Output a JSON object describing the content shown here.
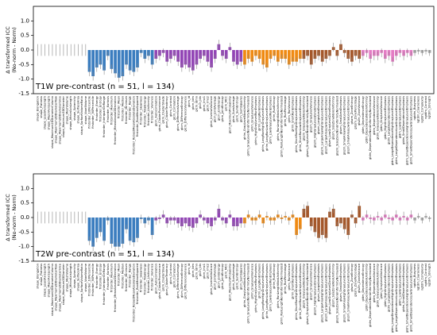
{
  "chart_data": [
    {
      "type": "bar",
      "title": "T1W pre-contrast (n = 51, l = 134)",
      "ylabel": [
        "Δ transformed ICC",
        "(No-norm - Norm)"
      ],
      "ylim": [
        -1.5,
        1.5
      ],
      "yticks": [
        {
          "value": 1,
          "label": "1.0"
        },
        0.5,
        {
          "value": 0,
          "label": "0.0"
        },
        -0.5,
        {
          "value": -1,
          "label": "-1.0"
        },
        -1.5
      ],
      "categories": [
        "shape_Elongation",
        "shape_Flatness",
        "shape_LeastAxisLength",
        "shape_MajorAxisLength",
        "shape_Maximum2DDiameterColumn",
        "shape_Maximum2DDiameterRow",
        "shape_Maximum2DDiameterSlice",
        "shape_Maximum3DDiameter",
        "shape_MeshVolume",
        "shape_MinorAxisLength",
        "shape_Sphericity",
        "shape_SurfaceArea",
        "shape_SurfaceVolumeRatio",
        "shape_VoxelVolume",
        "firstorder_10Percentile",
        "firstorder_90Percentile",
        "firstorder_Energy",
        "firstorder_Entropy",
        "firstorder_InterquartileRange",
        "firstorder_Kurtosis",
        "firstorder_Maximum",
        "firstorder_MeanAbsoluteDeviation",
        "firstorder_Mean",
        "firstorder_Median",
        "firstorder_Minimum",
        "firstorder_Range",
        "firstorder_RobustMeanAbsoluteDeviation",
        "firstorder_RootMeanSquared",
        "firstorder_Skewness",
        "firstorder_TotalEnergy",
        "firstorder_Uniformity",
        "firstorder_Variance",
        "glcm_Autocorrelation",
        "glcm_ClusterProminence",
        "glcm_ClusterShade",
        "glcm_ClusterTendency",
        "glcm_Contrast",
        "glcm_Correlation",
        "glcm_DifferenceAverage",
        "glcm_DifferenceEntropy",
        "glcm_DifferenceVariance",
        "glcm_Id",
        "glcm_Idm",
        "glcm_Idmn",
        "glcm_Idn",
        "glcm_Imc1",
        "glcm_Imc2",
        "glcm_InverseVariance",
        "glcm_JointAverage",
        "glcm_JointEnergy",
        "glcm_JointEntropy",
        "glcm_MCC",
        "glcm_MaximumProbability",
        "glcm_SumAverage",
        "glcm_SumEntropy",
        "glcm_SumSquares",
        "glrlm_GrayLevelNonUniformity",
        "glrlm_GrayLevelNonUniformityNormalized",
        "glrlm_GrayLevelVariance",
        "glrlm_HighGrayLevelRunEmphasis",
        "glrlm_LongRunEmphasis",
        "glrlm_LongRunHighGrayLevelEmphasis",
        "glrlm_LongRunLowGrayLevelEmphasis",
        "glrlm_LowGrayLevelRunEmphasis",
        "glrlm_RunEntropy",
        "glrlm_RunLengthNonUniformity",
        "glrlm_RunLengthNonUniformityNormalized",
        "glrlm_RunPercentage",
        "glrlm_RunVariance",
        "glrlm_ShortRunEmphasis",
        "glrlm_ShortRunHighGrayLevelEmphasis",
        "glrlm_ShortRunLowGrayLevelEmphasis",
        "glszm_GrayLevelNonUniformity",
        "glszm_GrayLevelNonUniformityNormalized",
        "glszm_GrayLevelVariance",
        "glszm_HighGrayLevelZoneEmphasis",
        "glszm_LargeAreaEmphasis",
        "glszm_LargeAreaHighGrayLevelEmphasis",
        "glszm_LargeAreaLowGrayLevelEmphasis",
        "glszm_LowGrayLevelZoneEmphasis",
        "glszm_SizeZoneNonUniformity",
        "glszm_SizeZoneNonUniformityNormalized",
        "glszm_SmallAreaEmphasis",
        "glszm_SmallAreaHighGrayLevelEmphasis",
        "glszm_SmallAreaLowGrayLevelEmphasis",
        "glszm_ZoneEntropy",
        "glszm_ZonePercentage",
        "glszm_ZoneVariance",
        "gldm_DependenceEntropy",
        "gldm_DependenceNonUniformity",
        "gldm_DependenceNonUniformityNormalized",
        "gldm_DependenceVariance",
        "gldm_GrayLevelNonUniformity",
        "gldm_GrayLevelVariance",
        "gldm_HighGrayLevelEmphasis",
        "gldm_LargeDependenceEmphasis",
        "gldm_LargeDependenceHighGrayLevelEmphasis",
        "gldm_LargeDependenceLowGrayLevelEmphasis",
        "gldm_LowGrayLevelEmphasis",
        "gldm_SmallDependenceEmphasis",
        "gldm_SmallDependenceHighGrayLevelEmphasis",
        "gldm_SmallDependenceLowGrayLevelEmphasis",
        "ngtdm_Busyness",
        "ngtdm_Coarseness",
        "ngtdm_Complexity",
        "ngtdm_Contrast",
        "ngtdm_Strength"
      ],
      "values": [
        0,
        0,
        0,
        0,
        0,
        0,
        0,
        0,
        0,
        0,
        0,
        0,
        0,
        0,
        -0.75,
        -0.9,
        -0.6,
        -0.5,
        -0.7,
        -0.2,
        -0.65,
        -0.8,
        -0.95,
        -0.9,
        -0.5,
        -0.7,
        -0.75,
        -0.6,
        -0.1,
        -0.3,
        -0.2,
        -0.5,
        -0.3,
        -0.2,
        -0.1,
        -0.4,
        -0.3,
        -0.2,
        -0.4,
        -0.6,
        -0.5,
        -0.6,
        -0.7,
        -0.5,
        -0.3,
        -0.2,
        -0.4,
        -0.6,
        -0.3,
        0.2,
        -0.2,
        -0.3,
        0.1,
        -0.4,
        -0.5,
        -0.4,
        -0.5,
        -0.3,
        -0.4,
        -0.2,
        -0.3,
        -0.5,
        -0.6,
        -0.3,
        -0.2,
        -0.4,
        -0.3,
        -0.3,
        -0.5,
        -0.4,
        -0.4,
        -0.3,
        -0.3,
        -0.2,
        -0.5,
        -0.3,
        -0.2,
        -0.4,
        -0.3,
        -0.2,
        0.1,
        -0.2,
        0.2,
        -0.1,
        -0.3,
        -0.4,
        -0.2,
        -0.3,
        -0.2,
        -0.1,
        -0.3,
        -0.2,
        -0.2,
        -0.1,
        -0.3,
        -0.2,
        -0.4,
        -0.2,
        -0.1,
        -0.2,
        -0.1,
        -0.2,
        -0.1,
        -0.05,
        -0.1,
        -0.05,
        -0.1
      ],
      "errors": [
        0.2,
        0.2,
        0.2,
        0.2,
        0.2,
        0.2,
        0.2,
        0.2,
        0.2,
        0.2,
        0.2,
        0.2,
        0.2,
        0.2,
        0.15,
        0.15,
        0.15,
        0.15,
        0.15,
        0.15,
        0.15,
        0.15,
        0.15,
        0.15,
        0.15,
        0.15,
        0.15,
        0.15,
        0.15,
        0.15,
        0.15,
        0.15,
        0.15,
        0.15,
        0.15,
        0.15,
        0.15,
        0.15,
        0.15,
        0.15,
        0.15,
        0.15,
        0.15,
        0.15,
        0.15,
        0.15,
        0.15,
        0.15,
        0.15,
        0.15,
        0.15,
        0.15,
        0.15,
        0.15,
        0.15,
        0.15,
        0.15,
        0.15,
        0.15,
        0.15,
        0.15,
        0.15,
        0.15,
        0.15,
        0.15,
        0.15,
        0.15,
        0.15,
        0.15,
        0.15,
        0.15,
        0.15,
        0.15,
        0.15,
        0.15,
        0.15,
        0.15,
        0.15,
        0.15,
        0.15,
        0.15,
        0.15,
        0.15,
        0.15,
        0.15,
        0.15,
        0.15,
        0.15,
        0.15,
        0.15,
        0.15,
        0.15,
        0.15,
        0.15,
        0.15,
        0.15,
        0.15,
        0.15,
        0.15,
        0.15,
        0.15,
        0.15,
        0.1,
        0.1,
        0.1,
        0.1,
        0.1
      ],
      "colors": [
        "#999",
        "#999",
        "#999",
        "#999",
        "#999",
        "#999",
        "#999",
        "#999",
        "#999",
        "#999",
        "#999",
        "#999",
        "#999",
        "#999",
        "#3b7dbf",
        "#3b7dbf",
        "#3b7dbf",
        "#3b7dbf",
        "#3b7dbf",
        "#3b7dbf",
        "#3b7dbf",
        "#3b7dbf",
        "#3b7dbf",
        "#3b7dbf",
        "#3b7dbf",
        "#3b7dbf",
        "#3b7dbf",
        "#3b7dbf",
        "#3b7dbf",
        "#3b7dbf",
        "#3b7dbf",
        "#3b7dbf",
        "#9245b5",
        "#9245b5",
        "#9245b5",
        "#9245b5",
        "#9245b5",
        "#9245b5",
        "#9245b5",
        "#9245b5",
        "#9245b5",
        "#9245b5",
        "#9245b5",
        "#9245b5",
        "#9245b5",
        "#9245b5",
        "#9245b5",
        "#9245b5",
        "#9245b5",
        "#9245b5",
        "#9245b5",
        "#9245b5",
        "#9245b5",
        "#9245b5",
        "#9245b5",
        "#9245b5",
        "#f08a12",
        "#f08a12",
        "#f08a12",
        "#f08a12",
        "#f08a12",
        "#f08a12",
        "#f08a12",
        "#f08a12",
        "#f08a12",
        "#f08a12",
        "#f08a12",
        "#f08a12",
        "#f08a12",
        "#f08a12",
        "#f08a12",
        "#f08a12",
        "#a4572a",
        "#a4572a",
        "#a4572a",
        "#a4572a",
        "#a4572a",
        "#a4572a",
        "#a4572a",
        "#a4572a",
        "#a4572a",
        "#a4572a",
        "#a4572a",
        "#a4572a",
        "#a4572a",
        "#a4572a",
        "#a4572a",
        "#a4572a",
        "#e57cc5",
        "#e57cc5",
        "#e57cc5",
        "#e57cc5",
        "#e57cc5",
        "#e57cc5",
        "#e57cc5",
        "#e57cc5",
        "#e57cc5",
        "#e57cc5",
        "#e57cc5",
        "#e57cc5",
        "#e57cc5",
        "#e57cc5",
        "#aaa",
        "#aaa",
        "#aaa",
        "#aaa",
        "#aaa"
      ]
    },
    {
      "type": "bar",
      "title": "T2W pre-contrast (n = 51, l = 134)",
      "ylabel": [
        "Δ transformed ICC",
        "(No-norm - Norm)"
      ],
      "ylim": [
        -1.5,
        1.5
      ],
      "yticks": [
        {
          "value": 1,
          "label": "1.0"
        },
        0.5,
        {
          "value": 0,
          "label": "0.0"
        },
        -0.5,
        {
          "value": -1,
          "label": "-1.0"
        },
        -1.5
      ],
      "categories": [
        "shape_Elongation",
        "shape_Flatness",
        "shape_LeastAxisLength",
        "shape_MajorAxisLength",
        "shape_Maximum2DDiameterColumn",
        "shape_Maximum2DDiameterRow",
        "shape_Maximum2DDiameterSlice",
        "shape_Maximum3DDiameter",
        "shape_MeshVolume",
        "shape_MinorAxisLength",
        "shape_Sphericity",
        "shape_SurfaceArea",
        "shape_SurfaceVolumeRatio",
        "shape_VoxelVolume",
        "firstorder_10Percentile",
        "firstorder_90Percentile",
        "firstorder_Energy",
        "firstorder_Entropy",
        "firstorder_InterquartileRange",
        "firstorder_Kurtosis",
        "firstorder_Maximum",
        "firstorder_MeanAbsoluteDeviation",
        "firstorder_Mean",
        "firstorder_Median",
        "firstorder_Minimum",
        "firstorder_Range",
        "firstorder_RobustMeanAbsoluteDeviation",
        "firstorder_RootMeanSquared",
        "firstorder_Skewness",
        "firstorder_TotalEnergy",
        "firstorder_Uniformity",
        "firstorder_Variance",
        "glcm_Autocorrelation",
        "glcm_ClusterProminence",
        "glcm_ClusterShade",
        "glcm_ClusterTendency",
        "glcm_Contrast",
        "glcm_Correlation",
        "glcm_DifferenceAverage",
        "glcm_DifferenceEntropy",
        "glcm_DifferenceVariance",
        "glcm_Id",
        "glcm_Idm",
        "glcm_Idmn",
        "glcm_Idn",
        "glcm_Imc1",
        "glcm_Imc2",
        "glcm_InverseVariance",
        "glcm_JointAverage",
        "glcm_JointEnergy",
        "glcm_JointEntropy",
        "glcm_MCC",
        "glcm_MaximumProbability",
        "glcm_SumAverage",
        "glcm_SumEntropy",
        "glcm_SumSquares",
        "glrlm_GrayLevelNonUniformity",
        "glrlm_GrayLevelNonUniformityNormalized",
        "glrlm_GrayLevelVariance",
        "glrlm_HighGrayLevelRunEmphasis",
        "glrlm_LongRunEmphasis",
        "glrlm_LongRunHighGrayLevelEmphasis",
        "glrlm_LongRunLowGrayLevelEmphasis",
        "glrlm_LowGrayLevelRunEmphasis",
        "glrlm_RunEntropy",
        "glrlm_RunLengthNonUniformity",
        "glrlm_RunLengthNonUniformityNormalized",
        "glrlm_RunPercentage",
        "glrlm_RunVariance",
        "glrlm_ShortRunEmphasis",
        "glrlm_ShortRunHighGrayLevelEmphasis",
        "glrlm_ShortRunLowGrayLevelEmphasis",
        "glszm_GrayLevelNonUniformity",
        "glszm_GrayLevelNonUniformityNormalized",
        "glszm_GrayLevelVariance",
        "glszm_HighGrayLevelZoneEmphasis",
        "glszm_LargeAreaEmphasis",
        "glszm_LargeAreaHighGrayLevelEmphasis",
        "glszm_LargeAreaLowGrayLevelEmphasis",
        "glszm_LowGrayLevelZoneEmphasis",
        "glszm_SizeZoneNonUniformity",
        "glszm_SizeZoneNonUniformityNormalized",
        "glszm_SmallAreaEmphasis",
        "glszm_SmallAreaHighGrayLevelEmphasis",
        "glszm_SmallAreaLowGrayLevelEmphasis",
        "glszm_ZoneEntropy",
        "glszm_ZonePercentage",
        "glszm_ZoneVariance",
        "gldm_DependenceEntropy",
        "gldm_DependenceNonUniformity",
        "gldm_DependenceNonUniformityNormalized",
        "gldm_DependenceVariance",
        "gldm_GrayLevelNonUniformity",
        "gldm_GrayLevelVariance",
        "gldm_HighGrayLevelEmphasis",
        "gldm_LargeDependenceEmphasis",
        "gldm_LargeDependenceHighGrayLevelEmphasis",
        "gldm_LargeDependenceLowGrayLevelEmphasis",
        "gldm_LowGrayLevelEmphasis",
        "gldm_SmallDependenceEmphasis",
        "gldm_SmallDependenceHighGrayLevelEmphasis",
        "gldm_SmallDependenceLowGrayLevelEmphasis",
        "ngtdm_Busyness",
        "ngtdm_Coarseness",
        "ngtdm_Complexity",
        "ngtdm_Contrast",
        "ngtdm_Strength"
      ],
      "values": [
        0,
        0,
        0,
        0,
        0,
        0,
        0,
        0,
        0,
        0,
        0,
        0,
        0,
        0,
        -0.8,
        -1.0,
        -0.7,
        -0.5,
        -0.8,
        -0.1,
        -0.9,
        -1.0,
        -1.0,
        -0.9,
        -0.4,
        -0.8,
        -0.85,
        -0.7,
        -0.05,
        -0.2,
        -0.1,
        -0.6,
        -0.1,
        -0.05,
        0.1,
        -0.2,
        -0.1,
        -0.1,
        -0.2,
        -0.3,
        -0.2,
        -0.3,
        -0.35,
        -0.2,
        0.1,
        -0.1,
        -0.2,
        -0.3,
        -0.1,
        0.3,
        -0.1,
        -0.2,
        0.1,
        -0.3,
        -0.3,
        -0.2,
        -0.2,
        0.1,
        -0.1,
        -0.1,
        0.1,
        -0.2,
        0.05,
        -0.1,
        -0.1,
        0.1,
        -0.05,
        0.05,
        -0.1,
        0.1,
        -0.6,
        -0.4,
        0.3,
        0.4,
        -0.3,
        -0.5,
        -0.7,
        -0.6,
        -0.7,
        0.2,
        0.3,
        -0.3,
        -0.2,
        -0.4,
        -0.6,
        0.1,
        -0.2,
        0.4,
        -0.1,
        0.1,
        -0.05,
        -0.1,
        0.05,
        -0.1,
        0.1,
        -0.05,
        -0.1,
        0.1,
        -0.1,
        0.05,
        -0.1,
        0.1,
        -0.1,
        0.05,
        -0.1,
        0.05,
        -0.05
      ],
      "errors": [
        0.2,
        0.2,
        0.2,
        0.2,
        0.2,
        0.2,
        0.2,
        0.2,
        0.2,
        0.2,
        0.2,
        0.2,
        0.2,
        0.2,
        0.15,
        0.15,
        0.15,
        0.15,
        0.15,
        0.15,
        0.15,
        0.15,
        0.15,
        0.15,
        0.15,
        0.15,
        0.15,
        0.15,
        0.15,
        0.15,
        0.15,
        0.15,
        0.15,
        0.15,
        0.15,
        0.15,
        0.15,
        0.15,
        0.15,
        0.15,
        0.15,
        0.15,
        0.15,
        0.15,
        0.15,
        0.15,
        0.15,
        0.15,
        0.15,
        0.15,
        0.15,
        0.15,
        0.15,
        0.15,
        0.15,
        0.15,
        0.15,
        0.15,
        0.15,
        0.15,
        0.15,
        0.15,
        0.15,
        0.15,
        0.15,
        0.15,
        0.15,
        0.15,
        0.15,
        0.15,
        0.15,
        0.15,
        0.15,
        0.15,
        0.15,
        0.15,
        0.15,
        0.15,
        0.15,
        0.15,
        0.15,
        0.15,
        0.15,
        0.15,
        0.15,
        0.15,
        0.15,
        0.15,
        0.15,
        0.15,
        0.15,
        0.15,
        0.15,
        0.15,
        0.15,
        0.15,
        0.15,
        0.15,
        0.15,
        0.15,
        0.15,
        0.15,
        0.1,
        0.1,
        0.1,
        0.1,
        0.1
      ],
      "colors": [
        "#999",
        "#999",
        "#999",
        "#999",
        "#999",
        "#999",
        "#999",
        "#999",
        "#999",
        "#999",
        "#999",
        "#999",
        "#999",
        "#999",
        "#3b7dbf",
        "#3b7dbf",
        "#3b7dbf",
        "#3b7dbf",
        "#3b7dbf",
        "#3b7dbf",
        "#3b7dbf",
        "#3b7dbf",
        "#3b7dbf",
        "#3b7dbf",
        "#3b7dbf",
        "#3b7dbf",
        "#3b7dbf",
        "#3b7dbf",
        "#3b7dbf",
        "#3b7dbf",
        "#3b7dbf",
        "#3b7dbf",
        "#9245b5",
        "#9245b5",
        "#9245b5",
        "#9245b5",
        "#9245b5",
        "#9245b5",
        "#9245b5",
        "#9245b5",
        "#9245b5",
        "#9245b5",
        "#9245b5",
        "#9245b5",
        "#9245b5",
        "#9245b5",
        "#9245b5",
        "#9245b5",
        "#9245b5",
        "#9245b5",
        "#9245b5",
        "#9245b5",
        "#9245b5",
        "#9245b5",
        "#9245b5",
        "#9245b5",
        "#f08a12",
        "#f08a12",
        "#f08a12",
        "#f08a12",
        "#f08a12",
        "#f08a12",
        "#f08a12",
        "#f08a12",
        "#f08a12",
        "#f08a12",
        "#f08a12",
        "#f08a12",
        "#f08a12",
        "#f08a12",
        "#f08a12",
        "#f08a12",
        "#a4572a",
        "#a4572a",
        "#a4572a",
        "#a4572a",
        "#a4572a",
        "#a4572a",
        "#a4572a",
        "#a4572a",
        "#a4572a",
        "#a4572a",
        "#a4572a",
        "#a4572a",
        "#a4572a",
        "#a4572a",
        "#a4572a",
        "#a4572a",
        "#e57cc5",
        "#e57cc5",
        "#e57cc5",
        "#e57cc5",
        "#e57cc5",
        "#e57cc5",
        "#e57cc5",
        "#e57cc5",
        "#e57cc5",
        "#e57cc5",
        "#e57cc5",
        "#e57cc5",
        "#e57cc5",
        "#e57cc5",
        "#aaa",
        "#aaa",
        "#aaa",
        "#aaa",
        "#aaa"
      ]
    }
  ]
}
